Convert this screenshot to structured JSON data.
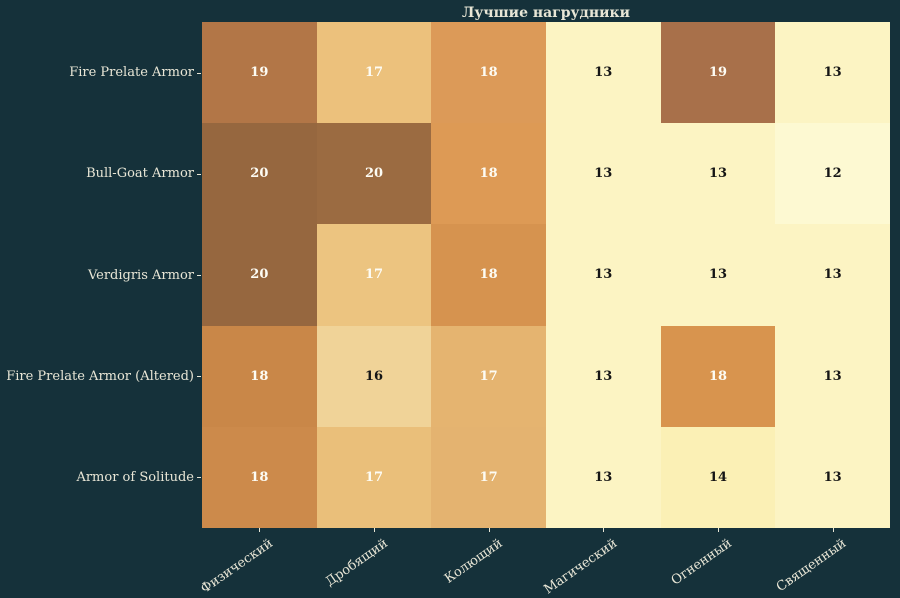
{
  "title": "Лучшие нагрудники",
  "colors": {
    "background": "#15313a",
    "axis_text": "#e8e6d6",
    "annot_light": "#fdfcf4",
    "annot_dark": "#151515"
  },
  "chart_data": {
    "type": "heatmap",
    "title": "Лучшие нагрудники",
    "rows": [
      "Fire Prelate Armor",
      "Bull-Goat Armor",
      "Verdigris Armor",
      "Fire Prelate Armor (Altered)",
      "Armor of Solitude"
    ],
    "columns": [
      "Физический",
      "Дробящий",
      "Колющий",
      "Магический",
      "Огненный",
      "Священный"
    ],
    "values": [
      [
        19,
        17,
        18,
        13,
        19,
        13
      ],
      [
        20,
        20,
        18,
        13,
        13,
        12
      ],
      [
        20,
        17,
        18,
        13,
        13,
        13
      ],
      [
        18,
        16,
        17,
        13,
        18,
        13
      ],
      [
        18,
        17,
        17,
        13,
        14,
        13
      ]
    ],
    "cell_colors": [
      [
        "#b27647",
        "#ecc17c",
        "#dc9a58",
        "#fcf4c3",
        "#a8704a",
        "#fcf4c3"
      ],
      [
        "#96673f",
        "#9b6b41",
        "#dd9a55",
        "#fcf4c3",
        "#fcf4c3",
        "#fdf9d2"
      ],
      [
        "#96673f",
        "#ecc480",
        "#d6934f",
        "#fcf4c3",
        "#fcf4c3",
        "#fcf4c3"
      ],
      [
        "#c98748",
        "#f0d398",
        "#e5b470",
        "#fcf4c3",
        "#d8944e",
        "#fcf4c3"
      ],
      [
        "#cc8a4b",
        "#eabf7a",
        "#e4b370",
        "#fcf4c3",
        "#fbf0b5",
        "#fcf4c3"
      ]
    ],
    "annot_light_threshold": 17,
    "value_range": [
      12,
      20
    ],
    "grid": "off",
    "legend": "none"
  }
}
